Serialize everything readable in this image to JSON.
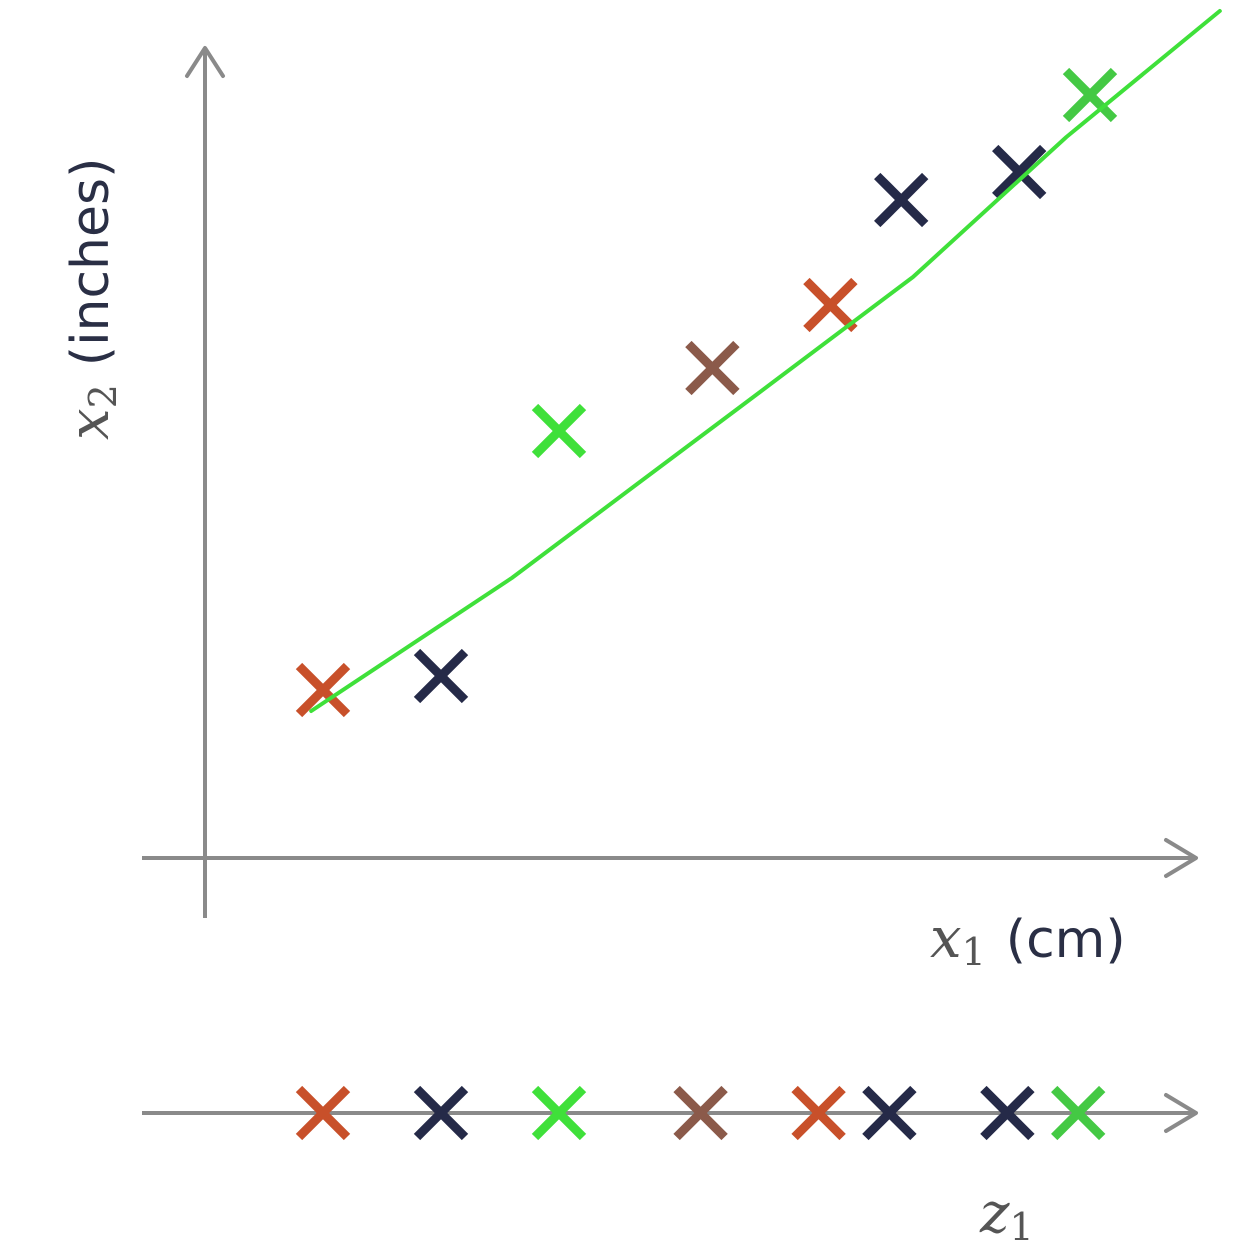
{
  "chart_data": [
    {
      "type": "scatter",
      "xlabel": {
        "var": "x",
        "sub": "1",
        "unit": "(cm)"
      },
      "ylabel": {
        "var": "x",
        "sub": "2",
        "unit": "(inches)"
      },
      "grid": false,
      "points": [
        {
          "x": 1.0,
          "y": 1.0,
          "color": "#c8502a"
        },
        {
          "x": 2.0,
          "y": 1.2,
          "color": "#252a48"
        },
        {
          "x": 3.0,
          "y": 4.7,
          "color": "#3fe03a"
        },
        {
          "x": 4.3,
          "y": 5.6,
          "color": "#8b5a4a"
        },
        {
          "x": 5.3,
          "y": 6.5,
          "color": "#c8502a"
        },
        {
          "x": 5.9,
          "y": 8.0,
          "color": "#252a48"
        },
        {
          "x": 6.9,
          "y": 8.4,
          "color": "#252a48"
        },
        {
          "x": 7.5,
          "y": 9.5,
          "color": "#44c944"
        }
      ],
      "fit_line": {
        "color": "#3fe03a",
        "points": [
          [
            0.9,
            0.7
          ],
          [
            2.6,
            2.6
          ],
          [
            4.5,
            5.0
          ],
          [
            6.0,
            6.9
          ],
          [
            7.3,
            8.9
          ],
          [
            8.6,
            10.7
          ]
        ]
      },
      "xlim": [
        -0.5,
        9.2
      ],
      "ylim": [
        -1.0,
        11.0
      ]
    },
    {
      "type": "scatter",
      "xlabel": {
        "var": "z",
        "sub": "1"
      },
      "points": [
        {
          "z": 1.0,
          "color": "#c8502a"
        },
        {
          "z": 2.0,
          "color": "#252a48"
        },
        {
          "z": 3.0,
          "color": "#3fe03a"
        },
        {
          "z": 4.2,
          "color": "#8b5a4a"
        },
        {
          "z": 5.2,
          "color": "#c8502a"
        },
        {
          "z": 5.8,
          "color": "#252a48"
        },
        {
          "z": 6.8,
          "color": "#252a48"
        },
        {
          "z": 7.4,
          "color": "#44c944"
        }
      ]
    }
  ]
}
